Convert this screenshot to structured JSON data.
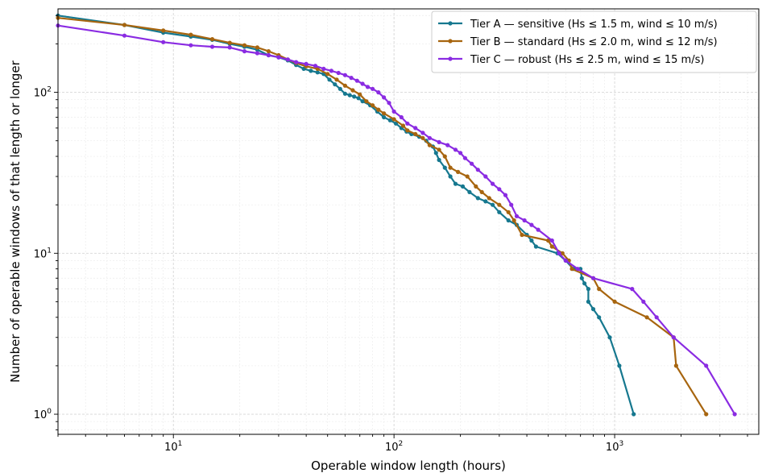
{
  "chart_data": {
    "type": "line",
    "title": "",
    "xlabel": "Operable window length (hours)",
    "ylabel": "Number of operable windows of that length or longer",
    "xscale": "log",
    "yscale": "log",
    "xlim": [
      3,
      4500
    ],
    "ylim": [
      0.75,
      330
    ],
    "x_ticks": [
      {
        "value": 10,
        "label": "10^1"
      },
      {
        "value": 100,
        "label": "10^2"
      },
      {
        "value": 1000,
        "label": "10^3"
      }
    ],
    "y_ticks": [
      {
        "value": 1,
        "label": "10^0"
      },
      {
        "value": 10,
        "label": "10^1"
      },
      {
        "value": 100,
        "label": "10^2"
      }
    ],
    "grid": true,
    "legend_position": "top-right",
    "series": [
      {
        "name": "Tier A — sensitive (Hs ≤ 1.5 m, wind ≤ 10 m/s)",
        "color": "#16788f",
        "points": [
          [
            3,
            300
          ],
          [
            6,
            262
          ],
          [
            9,
            235
          ],
          [
            12,
            222
          ],
          [
            15,
            212
          ],
          [
            18,
            200
          ],
          [
            21,
            192
          ],
          [
            24,
            184
          ],
          [
            27,
            170
          ],
          [
            30,
            165
          ],
          [
            33,
            158
          ],
          [
            36,
            148
          ],
          [
            39,
            140
          ],
          [
            42,
            136
          ],
          [
            45,
            133
          ],
          [
            48,
            130
          ],
          [
            51,
            120
          ],
          [
            54,
            112
          ],
          [
            57,
            105
          ],
          [
            60,
            98
          ],
          [
            63,
            96
          ],
          [
            66,
            94
          ],
          [
            69,
            92
          ],
          [
            72,
            88
          ],
          [
            78,
            83
          ],
          [
            84,
            76
          ],
          [
            90,
            70
          ],
          [
            96,
            67
          ],
          [
            102,
            64
          ],
          [
            108,
            60
          ],
          [
            114,
            57
          ],
          [
            120,
            55
          ],
          [
            130,
            53
          ],
          [
            140,
            50
          ],
          [
            150,
            46
          ],
          [
            155,
            42
          ],
          [
            160,
            38
          ],
          [
            170,
            34
          ],
          [
            180,
            30
          ],
          [
            190,
            27
          ],
          [
            205,
            26
          ],
          [
            220,
            24
          ],
          [
            240,
            22
          ],
          [
            260,
            21
          ],
          [
            280,
            20
          ],
          [
            300,
            18
          ],
          [
            330,
            16
          ],
          [
            360,
            15
          ],
          [
            400,
            13
          ],
          [
            420,
            12
          ],
          [
            440,
            11
          ],
          [
            550,
            10
          ],
          [
            600,
            9
          ],
          [
            650,
            8
          ],
          [
            700,
            8
          ],
          [
            710,
            7
          ],
          [
            730,
            6.5
          ],
          [
            760,
            6
          ],
          [
            760,
            5
          ],
          [
            800,
            4.5
          ],
          [
            850,
            4
          ],
          [
            950,
            3
          ],
          [
            1050,
            2
          ],
          [
            1220,
            1
          ]
        ]
      },
      {
        "name": "Tier B — standard (Hs ≤ 2.0 m, wind ≤ 12 m/s)",
        "color": "#a7650f",
        "points": [
          [
            3,
            290
          ],
          [
            6,
            262
          ],
          [
            9,
            242
          ],
          [
            12,
            228
          ],
          [
            15,
            214
          ],
          [
            18,
            203
          ],
          [
            21,
            196
          ],
          [
            24,
            190
          ],
          [
            27,
            180
          ],
          [
            30,
            170
          ],
          [
            33,
            160
          ],
          [
            36,
            152
          ],
          [
            40,
            145
          ],
          [
            45,
            140
          ],
          [
            50,
            130
          ],
          [
            55,
            120
          ],
          [
            60,
            110
          ],
          [
            65,
            103
          ],
          [
            70,
            97
          ],
          [
            75,
            88
          ],
          [
            80,
            83
          ],
          [
            85,
            78
          ],
          [
            90,
            74
          ],
          [
            100,
            68
          ],
          [
            110,
            62
          ],
          [
            115,
            58
          ],
          [
            125,
            55
          ],
          [
            135,
            52
          ],
          [
            145,
            47
          ],
          [
            160,
            44
          ],
          [
            170,
            40
          ],
          [
            180,
            34
          ],
          [
            195,
            32
          ],
          [
            215,
            30
          ],
          [
            235,
            26
          ],
          [
            250,
            24
          ],
          [
            270,
            22
          ],
          [
            300,
            20
          ],
          [
            330,
            18
          ],
          [
            350,
            16
          ],
          [
            380,
            13
          ],
          [
            500,
            12
          ],
          [
            520,
            11
          ],
          [
            580,
            10
          ],
          [
            620,
            9
          ],
          [
            640,
            8
          ],
          [
            800,
            7
          ],
          [
            850,
            6
          ],
          [
            1000,
            5
          ],
          [
            1400,
            4
          ],
          [
            1850,
            3
          ],
          [
            1900,
            2
          ],
          [
            2600,
            1
          ]
        ]
      },
      {
        "name": "Tier C — robust (Hs ≤ 2.5 m, wind ≤ 15 m/s)",
        "color": "#8a2be2",
        "points": [
          [
            3,
            260
          ],
          [
            6,
            225
          ],
          [
            9,
            205
          ],
          [
            12,
            196
          ],
          [
            15,
            192
          ],
          [
            18,
            190
          ],
          [
            21,
            180
          ],
          [
            24,
            175
          ],
          [
            27,
            170
          ],
          [
            30,
            165
          ],
          [
            33,
            160
          ],
          [
            36,
            154
          ],
          [
            40,
            150
          ],
          [
            44,
            146
          ],
          [
            48,
            140
          ],
          [
            52,
            136
          ],
          [
            56,
            132
          ],
          [
            60,
            128
          ],
          [
            64,
            123
          ],
          [
            68,
            118
          ],
          [
            72,
            113
          ],
          [
            76,
            108
          ],
          [
            80,
            105
          ],
          [
            85,
            100
          ],
          [
            90,
            93
          ],
          [
            95,
            86
          ],
          [
            100,
            76
          ],
          [
            108,
            70
          ],
          [
            115,
            64
          ],
          [
            125,
            60
          ],
          [
            135,
            56
          ],
          [
            145,
            52
          ],
          [
            160,
            49
          ],
          [
            175,
            47
          ],
          [
            190,
            44
          ],
          [
            200,
            42
          ],
          [
            210,
            39
          ],
          [
            225,
            36
          ],
          [
            240,
            33
          ],
          [
            260,
            30
          ],
          [
            280,
            27
          ],
          [
            300,
            25
          ],
          [
            320,
            23
          ],
          [
            340,
            20
          ],
          [
            360,
            17
          ],
          [
            390,
            16
          ],
          [
            420,
            15
          ],
          [
            450,
            14
          ],
          [
            520,
            12
          ],
          [
            560,
            10
          ],
          [
            600,
            9
          ],
          [
            680,
            8
          ],
          [
            800,
            7
          ],
          [
            1200,
            6
          ],
          [
            1350,
            5
          ],
          [
            1550,
            4
          ],
          [
            1850,
            3
          ],
          [
            2600,
            2
          ],
          [
            3500,
            1
          ]
        ]
      }
    ]
  }
}
